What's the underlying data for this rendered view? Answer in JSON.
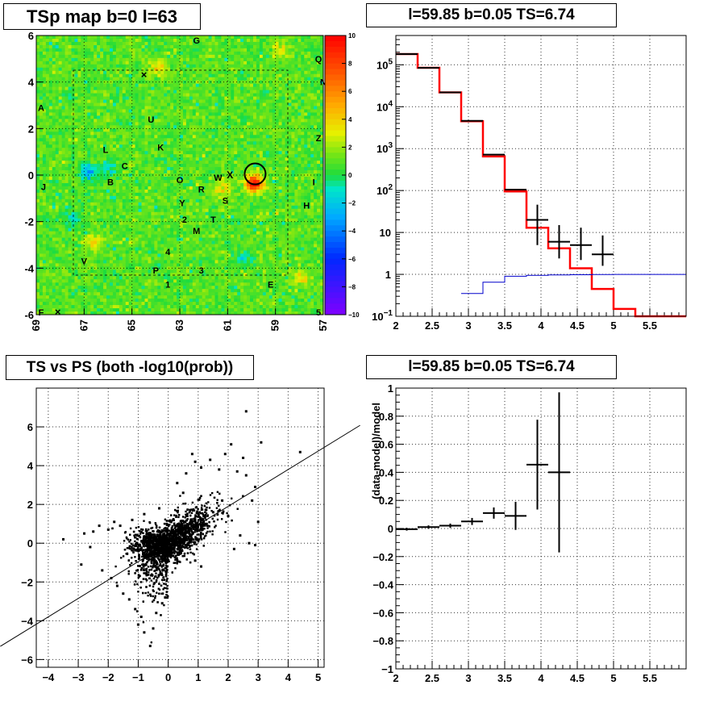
{
  "chart_data": [
    {
      "type": "heatmap",
      "title": "TSp map b=0 l=63",
      "xlim": [
        69,
        57
      ],
      "ylim": [
        -6,
        6
      ],
      "x_ticks": [
        "69",
        "67",
        "65",
        "63",
        "61",
        "59",
        "57"
      ],
      "y_ticks": [
        "-6",
        "-4",
        "-2",
        "0",
        "2",
        "4",
        "6"
      ],
      "colorbar": {
        "range": [
          -10,
          10
        ],
        "ticks": [
          "10",
          "8",
          "6",
          "4",
          "2",
          "0",
          "−2",
          "−4",
          "−6",
          "−8",
          "−10"
        ]
      },
      "grid": true,
      "source_labels": [
        {
          "text": "G",
          "l": 62.3,
          "b": 5.8
        },
        {
          "text": "Q",
          "l": 57.2,
          "b": 5.0
        },
        {
          "text": "N",
          "l": 57.0,
          "b": 4.0
        },
        {
          "text": "A",
          "l": 68.8,
          "b": 2.9
        },
        {
          "text": "U",
          "l": 64.2,
          "b": 2.4
        },
        {
          "text": "Z",
          "l": 57.2,
          "b": 1.6
        },
        {
          "text": "L",
          "l": 66.1,
          "b": 1.1
        },
        {
          "text": "K",
          "l": 63.8,
          "b": 1.2
        },
        {
          "text": "C",
          "l": 65.3,
          "b": 0.4
        },
        {
          "text": "O",
          "l": 63.0,
          "b": -0.2
        },
        {
          "text": "W",
          "l": 61.4,
          "b": -0.1
        },
        {
          "text": "B",
          "l": 65.9,
          "b": -0.3
        },
        {
          "text": "J",
          "l": 68.7,
          "b": -0.5
        },
        {
          "text": "R",
          "l": 62.1,
          "b": -0.6
        },
        {
          "text": "I",
          "l": 57.4,
          "b": -0.3
        },
        {
          "text": "S",
          "l": 61.1,
          "b": -1.1
        },
        {
          "text": "Y",
          "l": 62.9,
          "b": -1.2
        },
        {
          "text": "H",
          "l": 57.7,
          "b": -1.3
        },
        {
          "text": "2",
          "l": 62.8,
          "b": -1.9
        },
        {
          "text": "T",
          "l": 61.6,
          "b": -1.9
        },
        {
          "text": "M",
          "l": 62.3,
          "b": -2.4
        },
        {
          "text": "4",
          "l": 63.5,
          "b": -3.3
        },
        {
          "text": "V",
          "l": 67.0,
          "b": -3.7
        },
        {
          "text": "P",
          "l": 64.0,
          "b": -4.1
        },
        {
          "text": "3",
          "l": 62.1,
          "b": -4.1
        },
        {
          "text": "1",
          "l": 63.5,
          "b": -4.7
        },
        {
          "text": "E",
          "l": 59.2,
          "b": -4.7
        },
        {
          "text": "F",
          "l": 68.8,
          "b": -5.9
        },
        {
          "text": "5",
          "l": 57.2,
          "b": -5.9
        }
      ],
      "markers": [
        {
          "text": "×",
          "l": 64.5,
          "b": 4.3
        },
        {
          "text": "X",
          "l": 60.9,
          "b": 0.0
        },
        {
          "text": "×",
          "l": 68.1,
          "b": -5.9
        }
      ],
      "highlight_circle": {
        "l": 59.85,
        "b": 0.05
      }
    },
    {
      "type": "line",
      "title": "l=59.85 b=0.05 TS=6.74",
      "xlim": [
        2,
        6
      ],
      "ylim": [
        0.1,
        500000
      ],
      "y_scale": "log",
      "grid": true,
      "x_ticks": [
        "2",
        "2.5",
        "3",
        "3.5",
        "4",
        "4.5",
        "5",
        "5.5"
      ],
      "y_ticks": [
        "10⁻¹",
        "1",
        "10",
        "10²",
        "10³",
        "10⁴",
        "10⁵"
      ],
      "series": [
        {
          "type": "data-points",
          "color": "#000000",
          "points": [
            {
              "x_lo": 2.0,
              "x_hi": 2.3,
              "y": 180000
            },
            {
              "x_lo": 2.3,
              "x_hi": 2.6,
              "y": 85000
            },
            {
              "x_lo": 2.6,
              "x_hi": 2.9,
              "y": 22000
            },
            {
              "x_lo": 2.9,
              "x_hi": 3.2,
              "y": 4600
            },
            {
              "x_lo": 3.2,
              "x_hi": 3.5,
              "y": 720
            },
            {
              "x_lo": 3.5,
              "x_hi": 3.8,
              "y": 105
            },
            {
              "x_lo": 3.8,
              "x_hi": 4.1,
              "y": 20,
              "err_lo": 15,
              "err_hi": 26
            },
            {
              "x_lo": 4.1,
              "x_hi": 4.4,
              "y": 6,
              "err_lo": 3.6,
              "err_hi": 9
            },
            {
              "x_lo": 4.4,
              "x_hi": 4.7,
              "y": 5,
              "err_lo": 2.8,
              "err_hi": 8
            },
            {
              "x_lo": 4.7,
              "x_hi": 5.0,
              "y": 3,
              "err_lo": 1.4,
              "err_hi": 5.5
            }
          ]
        },
        {
          "type": "histogram",
          "color": "#ff0000",
          "edges": [
            2.0,
            2.3,
            2.6,
            2.9,
            3.2,
            3.5,
            3.8,
            4.1,
            4.4,
            4.7,
            5.0,
            5.3,
            6.0
          ],
          "values": [
            180000,
            85000,
            22000,
            4500,
            650,
            95,
            13,
            4.2,
            1.4,
            0.45,
            0.15,
            0.1
          ]
        },
        {
          "type": "histogram",
          "color": "#0000cc",
          "edges": [
            2.9,
            3.2,
            3.5,
            3.8,
            4.1,
            4.4,
            4.7,
            5.0,
            5.3,
            6.0
          ],
          "values": [
            0.35,
            0.65,
            0.9,
            0.95,
            0.97,
            0.98,
            0.99,
            1.0,
            1.0
          ]
        }
      ]
    },
    {
      "type": "scatter",
      "title": "TS vs PS (both -log10(prob))",
      "xlim": [
        -4.4,
        5.2
      ],
      "ylim": [
        -6.4,
        8.0
      ],
      "grid": true,
      "x_ticks": [
        "−4",
        "−3",
        "−2",
        "−1",
        "0",
        "1",
        "2",
        "3",
        "4",
        "5"
      ],
      "y_ticks": [
        "−6",
        "−4",
        "−2",
        "0",
        "2",
        "4",
        "6"
      ],
      "fit_line": {
        "slope": 0.95,
        "intercept": 0.0
      },
      "points": [
        [
          -3.5,
          0.2
        ],
        [
          -2.8,
          0.5
        ],
        [
          -2.6,
          -0.2
        ],
        [
          -2.5,
          0.6
        ],
        [
          -2.9,
          -1.1
        ],
        [
          -2.3,
          0.9
        ],
        [
          -2.2,
          -1.4
        ],
        [
          -2.0,
          0.7
        ],
        [
          -1.9,
          -1.8
        ],
        [
          -1.8,
          1.1
        ],
        [
          -1.7,
          -2.2
        ],
        [
          -1.6,
          0.9
        ],
        [
          -1.5,
          -2.6
        ],
        [
          -1.3,
          -2.9
        ],
        [
          -1.2,
          1.2
        ],
        [
          -1.1,
          -3.4
        ],
        [
          -1.0,
          -4.2
        ],
        [
          -0.9,
          -3.8
        ],
        [
          -0.8,
          -4.6
        ],
        [
          -0.6,
          -5.3
        ],
        [
          -0.5,
          -4.4
        ],
        [
          -0.4,
          -3.6
        ],
        [
          -0.2,
          -3.1
        ],
        [
          -0.1,
          -2.8
        ],
        [
          0.3,
          3.1
        ],
        [
          0.6,
          3.6
        ],
        [
          0.9,
          4.2
        ],
        [
          1.1,
          3.9
        ],
        [
          0.8,
          4.6
        ],
        [
          1.4,
          4.3
        ],
        [
          1.7,
          3.8
        ],
        [
          1.9,
          4.6
        ],
        [
          2.1,
          5.1
        ],
        [
          2.5,
          4.4
        ],
        [
          2.3,
          3.7
        ],
        [
          2.6,
          3.5
        ],
        [
          2.9,
          2.9
        ],
        [
          3.1,
          5.2
        ],
        [
          2.6,
          6.8
        ],
        [
          4.4,
          4.7
        ],
        [
          2.8,
          2.2
        ],
        [
          3.0,
          1.1
        ],
        [
          2.7,
          0.0
        ],
        [
          2.9,
          -0.1
        ],
        [
          2.2,
          -0.3
        ],
        [
          2.4,
          0.4
        ],
        [
          0.9,
          -0.9
        ],
        [
          1.1,
          -1.2
        ],
        [
          1.5,
          1.6
        ],
        [
          1.8,
          2.2
        ],
        [
          2.0,
          1.4
        ],
        [
          0.5,
          2.6
        ],
        [
          -0.3,
          1.8
        ],
        [
          -0.8,
          1.5
        ]
      ]
    },
    {
      "type": "line",
      "title": "l=59.85 b=0.05 TS=6.74",
      "ylabel": "(data-model)/model",
      "xlim": [
        2,
        6
      ],
      "ylim": [
        -1,
        1
      ],
      "grid": true,
      "x_ticks": [
        "2",
        "2.5",
        "3",
        "3.5",
        "4",
        "4.5",
        "5",
        "5.5"
      ],
      "y_ticks": [
        "−1",
        "−0.8",
        "−0.6",
        "−0.4",
        "−0.2",
        "0",
        "0.2",
        "0.4",
        "0.6",
        "0.8",
        "1"
      ],
      "points": [
        {
          "x_lo": 2.0,
          "x_hi": 2.3,
          "y": -0.005,
          "err": 0.01
        },
        {
          "x_lo": 2.3,
          "x_hi": 2.6,
          "y": 0.01,
          "err": 0.012
        },
        {
          "x_lo": 2.6,
          "x_hi": 2.9,
          "y": 0.02,
          "err": 0.015
        },
        {
          "x_lo": 2.9,
          "x_hi": 3.2,
          "y": 0.05,
          "err": 0.025
        },
        {
          "x_lo": 3.2,
          "x_hi": 3.5,
          "y": 0.11,
          "err": 0.04
        },
        {
          "x_lo": 3.5,
          "x_hi": 3.8,
          "y": 0.09,
          "err": 0.1
        },
        {
          "x_lo": 3.8,
          "x_hi": 4.1,
          "y": 0.455,
          "err": 0.32
        },
        {
          "x_lo": 4.1,
          "x_hi": 4.4,
          "y": 0.4,
          "err": 0.57
        }
      ]
    }
  ]
}
